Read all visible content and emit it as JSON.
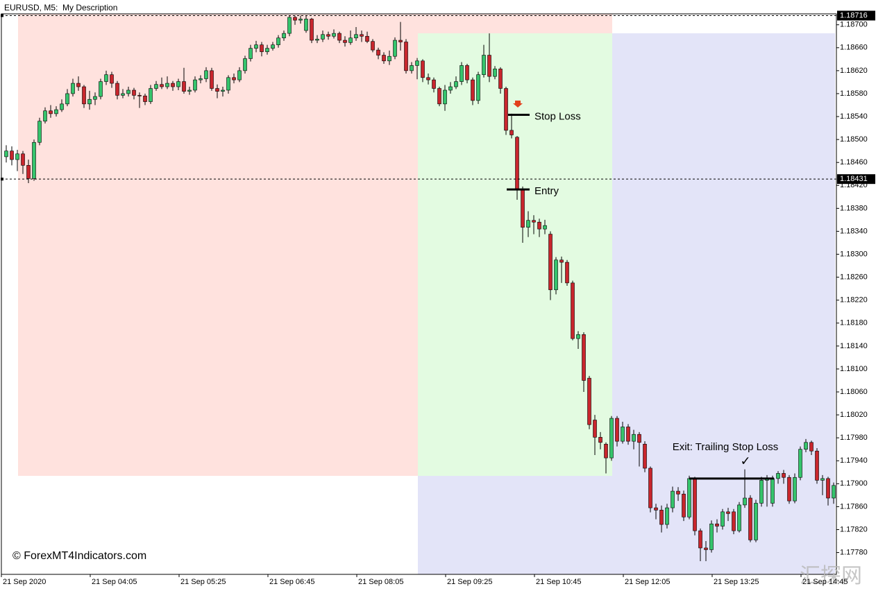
{
  "chart_data": {
    "type": "candlestick",
    "title": "EURUSD, M5:  My Description",
    "watermark": "© ForexMT4Indicators.com",
    "site_mark": "汇探网",
    "up_color": "#35c46c",
    "down_color": "#c8262d",
    "ylim": [
      1.17742,
      1.18719
    ],
    "yticks": [
      {
        "value": 1.1778,
        "label": "1.17780"
      },
      {
        "value": 1.1782,
        "label": "1.17820"
      },
      {
        "value": 1.1786,
        "label": "1.17860"
      },
      {
        "value": 1.179,
        "label": "1.17900"
      },
      {
        "value": 1.1794,
        "label": "1.17940"
      },
      {
        "value": 1.1798,
        "label": "1.17980"
      },
      {
        "value": 1.1802,
        "label": "1.18020"
      },
      {
        "value": 1.1806,
        "label": "1.18060"
      },
      {
        "value": 1.181,
        "label": "1.18100"
      },
      {
        "value": 1.1814,
        "label": "1.18140"
      },
      {
        "value": 1.1818,
        "label": "1.18180"
      },
      {
        "value": 1.1822,
        "label": "1.18220"
      },
      {
        "value": 1.1826,
        "label": "1.18260"
      },
      {
        "value": 1.183,
        "label": "1.18300"
      },
      {
        "value": 1.1834,
        "label": "1.18340"
      },
      {
        "value": 1.1838,
        "label": "1.18380"
      },
      {
        "value": 1.1842,
        "label": "1.18420"
      },
      {
        "value": 1.1846,
        "label": "1.18460"
      },
      {
        "value": 1.185,
        "label": "1.18500"
      },
      {
        "value": 1.1854,
        "label": "1.18540"
      },
      {
        "value": 1.1858,
        "label": "1.18580"
      },
      {
        "value": 1.1862,
        "label": "1.18620"
      },
      {
        "value": 1.1866,
        "label": "1.18660"
      },
      {
        "value": 1.187,
        "label": "1.18700"
      }
    ],
    "price_lines": [
      1.18716,
      1.18431
    ],
    "annotations": [
      {
        "text": "Stop Loss",
        "value": 1.18543
      },
      {
        "text": "Entry",
        "value": 1.18413
      },
      {
        "text": "Exit: Trailing Stop Loss",
        "value": 1.17909,
        "mark": "✓"
      }
    ],
    "categories": [
      "21 Sep 2020",
      null,
      null,
      null,
      null,
      null,
      null,
      null,
      null,
      null,
      null,
      null,
      null,
      null,
      null,
      null,
      "21 Sep 04:05",
      null,
      null,
      null,
      null,
      null,
      null,
      null,
      null,
      null,
      null,
      null,
      null,
      null,
      null,
      null,
      "21 Sep 05:25",
      null,
      null,
      null,
      null,
      null,
      null,
      null,
      null,
      null,
      null,
      null,
      null,
      null,
      null,
      null,
      "21 Sep 06:45",
      null,
      null,
      null,
      null,
      null,
      null,
      null,
      null,
      null,
      null,
      null,
      null,
      null,
      null,
      null,
      "21 Sep 08:05",
      null,
      null,
      null,
      null,
      null,
      null,
      null,
      null,
      null,
      null,
      null,
      null,
      null,
      null,
      null,
      "21 Sep 09:25",
      null,
      null,
      null,
      null,
      null,
      null,
      null,
      null,
      null,
      null,
      null,
      null,
      null,
      null,
      null,
      "21 Sep 10:45",
      null,
      null,
      null,
      null,
      null,
      null,
      null,
      null,
      null,
      null,
      null,
      null,
      null,
      null,
      null,
      "21 Sep 12:05",
      null,
      null,
      null,
      null,
      null,
      null,
      null,
      null,
      null,
      null,
      null,
      null,
      null,
      null,
      null,
      "21 Sep 13:25",
      null,
      null,
      null,
      null,
      null,
      null,
      null,
      null,
      null,
      null,
      null,
      null,
      null,
      null,
      null,
      "21 Sep 14:45",
      null,
      null,
      null,
      null,
      null
    ],
    "open": [
      1.1847,
      1.1848,
      1.18465,
      1.18475,
      1.18455,
      1.18432,
      1.18495,
      1.18532,
      1.1855,
      1.18545,
      1.18552,
      1.18562,
      1.1858,
      1.18598,
      1.18592,
      1.18562,
      1.1857,
      1.18575,
      1.18601,
      1.18613,
      1.18598,
      1.18577,
      1.1858,
      1.18586,
      1.18577,
      1.18576,
      1.18566,
      1.18589,
      1.18596,
      1.18592,
      1.18598,
      1.18592,
      1.18601,
      1.18584,
      1.18586,
      1.18604,
      1.18606,
      1.1862,
      1.18589,
      1.18584,
      1.18586,
      1.18608,
      1.18604,
      1.1862,
      1.18641,
      1.18659,
      1.18665,
      1.18653,
      1.18659,
      1.18665,
      1.18677,
      1.18685,
      1.18713,
      1.18708,
      1.1869,
      1.1871,
      1.18673,
      1.18675,
      1.18683,
      1.1868,
      1.18685,
      1.18673,
      1.18669,
      1.18677,
      1.18683,
      1.1868,
      1.18671,
      1.18656,
      1.18647,
      1.18637,
      1.18645,
      1.18673,
      1.1867,
      1.1862,
      1.18629,
      1.18637,
      1.18608,
      1.18604,
      1.18589,
      1.18562,
      1.18586,
      1.18592,
      1.18601,
      1.18629,
      1.18604,
      1.18568,
      1.18613,
      1.18647,
      1.1861,
      1.18623,
      1.18589,
      1.18516,
      1.18504,
      1.18414,
      1.18347,
      1.18359,
      1.18356,
      1.18344,
      1.18335,
      1.18238,
      1.1829,
      1.18286,
      1.1825,
      1.18153,
      1.1816,
      1.18084,
      1.18011,
      1.17981,
      1.17969,
      1.17945,
      1.18014,
      1.17974,
      1.17999,
      1.17974,
      1.17986,
      1.17969,
      1.17927,
      1.17858,
      1.17854,
      1.17829,
      1.17858,
      1.17887,
      1.17882,
      1.17842,
      1.17909,
      1.17818,
      1.17788,
      1.17785,
      1.1783,
      1.17826,
      1.17851,
      1.17851,
      1.17818,
      1.17863,
      1.17875,
      1.17802,
      1.17866,
      1.17906,
      1.17866,
      1.17909,
      1.17918,
      1.17911,
      1.1787,
      1.17911,
      1.1796,
      1.17972,
      1.17957,
      1.17906,
      1.17909,
      1.17875
    ],
    "high": [
      1.1849,
      1.18488,
      1.18482,
      1.1848,
      1.18465,
      1.185,
      1.18538,
      1.18556,
      1.1856,
      1.18558,
      1.1857,
      1.18588,
      1.18606,
      1.1861,
      1.18595,
      1.18585,
      1.18582,
      1.18606,
      1.1862,
      1.18618,
      1.18602,
      1.18588,
      1.18592,
      1.1859,
      1.18582,
      1.1858,
      1.18595,
      1.18602,
      1.18608,
      1.1861,
      1.18602,
      1.18606,
      1.18625,
      1.18592,
      1.1861,
      1.18612,
      1.18626,
      1.18625,
      1.18596,
      1.18592,
      1.18612,
      1.18615,
      1.18626,
      1.18646,
      1.18665,
      1.18672,
      1.1867,
      1.18665,
      1.1867,
      1.18682,
      1.1869,
      1.18716,
      1.18716,
      1.18716,
      1.18716,
      1.18712,
      1.18682,
      1.1869,
      1.18688,
      1.18692,
      1.18688,
      1.1868,
      1.1869,
      1.18696,
      1.1869,
      1.18688,
      1.18675,
      1.1866,
      1.18652,
      1.18655,
      1.18678,
      1.18705,
      1.18675,
      1.18635,
      1.18642,
      1.1864,
      1.18615,
      1.18608,
      1.18592,
      1.18595,
      1.186,
      1.1861,
      1.18635,
      1.18632,
      1.18608,
      1.18618,
      1.18665,
      1.18685,
      1.18628,
      1.18626,
      1.18592,
      1.18545,
      1.18506,
      1.18418,
      1.18375,
      1.18368,
      1.18362,
      1.1836,
      1.1834,
      1.18295,
      1.18296,
      1.1829,
      1.18254,
      1.18166,
      1.18164,
      1.18088,
      1.1802,
      1.1799,
      1.17972,
      1.18018,
      1.18018,
      1.18008,
      1.18004,
      1.17994,
      1.1799,
      1.17974,
      1.1793,
      1.17865,
      1.17862,
      1.17865,
      1.17895,
      1.17894,
      1.17888,
      1.17914,
      1.17912,
      1.17822,
      1.178,
      1.17836,
      1.17838,
      1.17856,
      1.17858,
      1.17856,
      1.17868,
      1.17925,
      1.1788,
      1.17872,
      1.17912,
      1.17915,
      1.17914,
      1.17922,
      1.17924,
      1.17915,
      1.17918,
      1.17965,
      1.17978,
      1.17975,
      1.17962,
      1.17915,
      1.17912,
      1.17902
    ],
    "low": [
      1.1846,
      1.18455,
      1.18445,
      1.1844,
      1.18424,
      1.18428,
      1.1849,
      1.18528,
      1.18538,
      1.1854,
      1.18548,
      1.18558,
      1.18575,
      1.18585,
      1.18555,
      1.18552,
      1.1856,
      1.1857,
      1.18595,
      1.1859,
      1.1857,
      1.18572,
      1.18575,
      1.1857,
      1.18555,
      1.1856,
      1.18562,
      1.18585,
      1.18588,
      1.18588,
      1.18585,
      1.18586,
      1.1858,
      1.18578,
      1.18582,
      1.18598,
      1.186,
      1.18585,
      1.18572,
      1.18575,
      1.1858,
      1.18598,
      1.186,
      1.18615,
      1.18636,
      1.18652,
      1.18645,
      1.18648,
      1.18655,
      1.1866,
      1.18672,
      1.1868,
      1.187,
      1.18702,
      1.18686,
      1.18668,
      1.18668,
      1.1867,
      1.18674,
      1.18676,
      1.18668,
      1.18662,
      1.18665,
      1.18672,
      1.1867,
      1.18668,
      1.18652,
      1.1864,
      1.18632,
      1.1863,
      1.1864,
      1.18655,
      1.18615,
      1.18615,
      1.18605,
      1.186,
      1.18596,
      1.18582,
      1.18558,
      1.1855,
      1.1858,
      1.18588,
      1.18595,
      1.18598,
      1.1856,
      1.18562,
      1.18608,
      1.186,
      1.18605,
      1.1858,
      1.18508,
      1.18502,
      1.18395,
      1.1832,
      1.1833,
      1.18335,
      1.1833,
      1.18335,
      1.1822,
      1.1823,
      1.1825,
      1.18245,
      1.1815,
      1.18135,
      1.1806,
      1.17995,
      1.1795,
      1.1796,
      1.17918,
      1.1794,
      1.17965,
      1.1797,
      1.17968,
      1.1796,
      1.1793,
      1.1792,
      1.1785,
      1.17838,
      1.17815,
      1.17822,
      1.1785,
      1.1787,
      1.17835,
      1.17838,
      1.1781,
      1.17765,
      1.17765,
      1.1778,
      1.17815,
      1.1782,
      1.17835,
      1.17812,
      1.17815,
      1.17858,
      1.17798,
      1.17798,
      1.1786,
      1.1786,
      1.1786,
      1.179,
      1.179,
      1.17865,
      1.17866,
      1.17906,
      1.17955,
      1.1795,
      1.179,
      1.1788,
      1.17862,
      1.17865
    ],
    "close": [
      1.1848,
      1.18465,
      1.18475,
      1.18455,
      1.18432,
      1.18495,
      1.18532,
      1.1855,
      1.18545,
      1.18552,
      1.18562,
      1.1858,
      1.18598,
      1.18592,
      1.18562,
      1.1857,
      1.18575,
      1.18601,
      1.18613,
      1.18598,
      1.18577,
      1.1858,
      1.18586,
      1.18577,
      1.18576,
      1.18566,
      1.18589,
      1.18596,
      1.18592,
      1.18598,
      1.18592,
      1.18601,
      1.18584,
      1.18586,
      1.18604,
      1.18606,
      1.1862,
      1.18589,
      1.18584,
      1.18586,
      1.18608,
      1.18604,
      1.1862,
      1.18641,
      1.18659,
      1.18665,
      1.18653,
      1.18659,
      1.18665,
      1.18677,
      1.18685,
      1.18713,
      1.18708,
      1.1871,
      1.1871,
      1.18673,
      1.18675,
      1.18683,
      1.1868,
      1.18685,
      1.18673,
      1.18669,
      1.18677,
      1.18683,
      1.1868,
      1.18671,
      1.18656,
      1.18647,
      1.18637,
      1.18645,
      1.18673,
      1.1867,
      1.1862,
      1.18629,
      1.18637,
      1.18608,
      1.18604,
      1.18589,
      1.18562,
      1.18586,
      1.18592,
      1.18601,
      1.18629,
      1.18604,
      1.18568,
      1.18613,
      1.18647,
      1.1861,
      1.18623,
      1.18589,
      1.18516,
      1.18508,
      1.18414,
      1.18347,
      1.18359,
      1.18356,
      1.18344,
      1.1835,
      1.18238,
      1.1829,
      1.18286,
      1.1825,
      1.18153,
      1.1816,
      1.1808,
      1.18003,
      1.17981,
      1.17972,
      1.17945,
      1.18014,
      1.17974,
      1.17999,
      1.17974,
      1.17986,
      1.17972,
      1.17927,
      1.17858,
      1.17854,
      1.17829,
      1.17858,
      1.17887,
      1.17882,
      1.17842,
      1.17909,
      1.17818,
      1.17788,
      1.17785,
      1.1783,
      1.17826,
      1.17851,
      1.17848,
      1.17818,
      1.17863,
      1.17875,
      1.17802,
      1.17866,
      1.17906,
      1.17909,
      1.17909,
      1.17918,
      1.17911,
      1.1787,
      1.17911,
      1.1796,
      1.17972,
      1.17957,
      1.17906,
      1.17909,
      1.17875,
      1.17897
    ]
  }
}
